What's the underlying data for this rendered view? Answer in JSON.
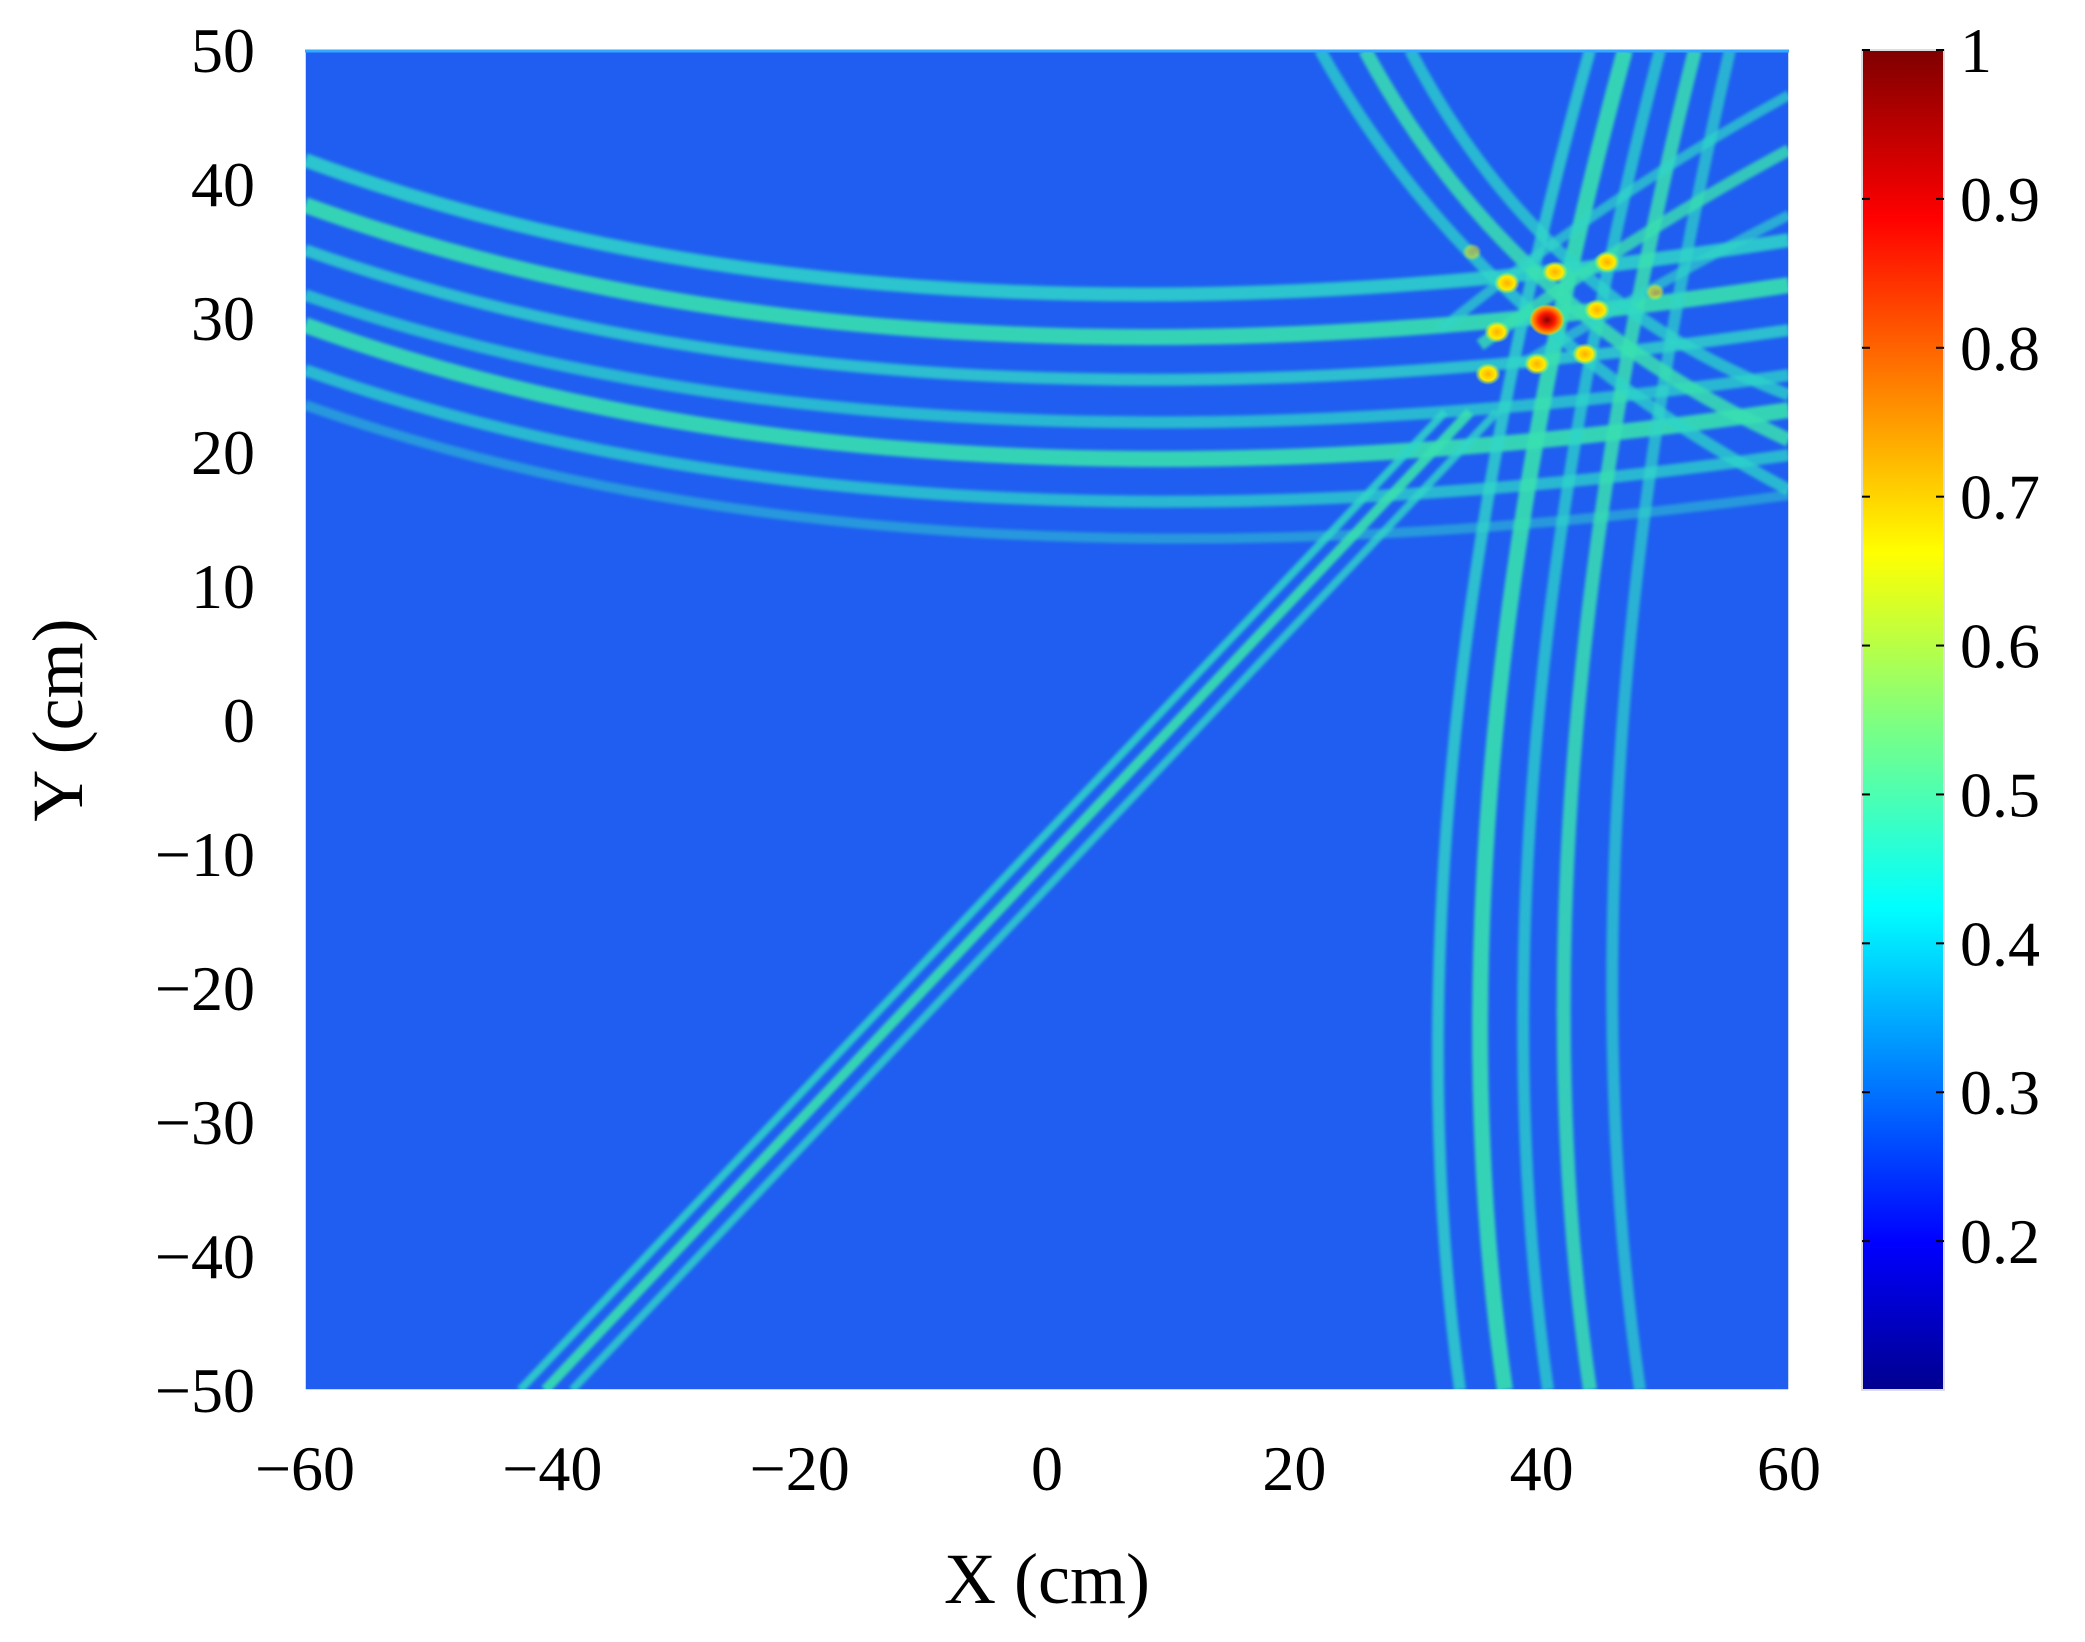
{
  "chart_data": {
    "type": "heatmap",
    "title": "",
    "xlabel": "X (cm)",
    "ylabel": "Y (cm)",
    "xlim": [
      -60,
      60
    ],
    "ylim": [
      -50,
      50
    ],
    "xticks": [
      -60,
      -40,
      -20,
      0,
      20,
      40,
      60
    ],
    "xtick_labels": [
      "−60",
      "−40",
      "−20",
      "0",
      "20",
      "40",
      "60"
    ],
    "yticks": [
      50,
      40,
      30,
      20,
      10,
      0,
      -10,
      -20,
      -30,
      -40,
      -50
    ],
    "ytick_labels": [
      "50",
      "40",
      "30",
      "20",
      "10",
      "0",
      "−10",
      "−20",
      "−30",
      "−40",
      "−50"
    ],
    "colorbar": {
      "colormap": "jet",
      "range": [
        0.1,
        1
      ],
      "ticks": [
        1,
        0.9,
        0.8,
        0.7,
        0.6,
        0.5,
        0.4,
        0.3,
        0.2
      ],
      "tick_labels": [
        "1",
        "0.9",
        "0.8",
        "0.7",
        "0.6",
        "0.5",
        "0.4",
        "0.3",
        "0.2"
      ]
    },
    "background_level": 0.3,
    "peak": {
      "x": 40,
      "y": 31,
      "value": 1.0
    },
    "grid": false,
    "legend": "none"
  }
}
